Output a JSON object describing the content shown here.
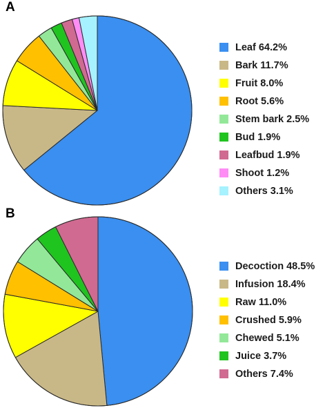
{
  "chart_data": [
    {
      "type": "pie",
      "panel_label": "A",
      "start_angle_deg": 0,
      "direction": "clockwise",
      "legend_position": "right",
      "slices": [
        {
          "label": "Leaf",
          "value": 64.2,
          "legend_text": "Leaf  64.2%",
          "color": "#3a8ff0"
        },
        {
          "label": "Bark",
          "value": 11.7,
          "legend_text": "Bark  11.7%",
          "color": "#c9b887"
        },
        {
          "label": "Fruit",
          "value": 8.0,
          "legend_text": "Fruit  8.0%",
          "color": "#ffff00"
        },
        {
          "label": "Root",
          "value": 5.6,
          "legend_text": "Root  5.6%",
          "color": "#ffc000"
        },
        {
          "label": "Stem bark",
          "value": 2.5,
          "legend_text": "Stem bark  2.5%",
          "color": "#92e898"
        },
        {
          "label": "Bud",
          "value": 1.9,
          "legend_text": "Bud  1.9%",
          "color": "#1fc41f"
        },
        {
          "label": "Leafbud",
          "value": 1.9,
          "legend_text": "Leafbud  1.9%",
          "color": "#d06a90"
        },
        {
          "label": "Shoot",
          "value": 1.2,
          "legend_text": "Shoot  1.2%",
          "color": "#ff8cf5"
        },
        {
          "label": "Others",
          "value": 3.1,
          "legend_text": "Others  3.1%",
          "color": "#a6f2ff"
        }
      ]
    },
    {
      "type": "pie",
      "panel_label": "B",
      "start_angle_deg": 0,
      "direction": "clockwise",
      "legend_position": "right",
      "slices": [
        {
          "label": "Decoction",
          "value": 48.5,
          "legend_text": "Decoction  48.5%",
          "color": "#3a8ff0"
        },
        {
          "label": "Infusion",
          "value": 18.4,
          "legend_text": "Infusion  18.4%",
          "color": "#c9b887"
        },
        {
          "label": "Raw",
          "value": 11.0,
          "legend_text": "Raw  11.0%",
          "color": "#ffff00"
        },
        {
          "label": "Crushed",
          "value": 5.9,
          "legend_text": "Crushed  5.9%",
          "color": "#ffc000"
        },
        {
          "label": "Chewed",
          "value": 5.1,
          "legend_text": "Chewed  5.1%",
          "color": "#92e898"
        },
        {
          "label": "Juice",
          "value": 3.7,
          "legend_text": "Juice  3.7%",
          "color": "#1fc41f"
        },
        {
          "label": "Others",
          "value": 7.4,
          "legend_text": "Others  7.4%",
          "color": "#d06a90"
        }
      ]
    }
  ]
}
